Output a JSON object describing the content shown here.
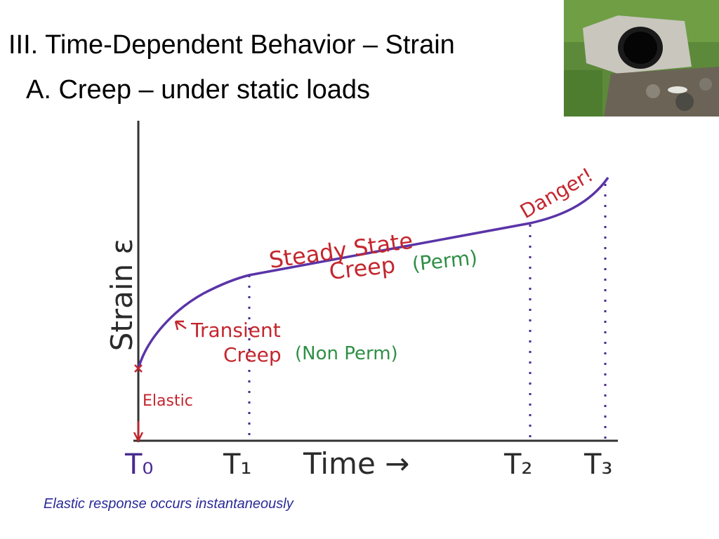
{
  "title": "III. Time-Dependent Behavior – Strain",
  "subtitle": "A. Creep – under static loads",
  "diagram": {
    "y_axis_label": "Strain ε",
    "x_axis_label": "Time →",
    "time_marks": [
      "T₀",
      "T₁",
      "T₂",
      "T₃"
    ],
    "annotations": {
      "elastic": "Elastic",
      "transient": "Transient",
      "transient_creep": "Creep",
      "non_perm": "(Non Perm)",
      "steady_state": "Steady State",
      "steady_creep": "Creep",
      "perm": "(Perm)",
      "danger": "Danger!"
    }
  },
  "caption": "Elastic response occurs instantaneously"
}
